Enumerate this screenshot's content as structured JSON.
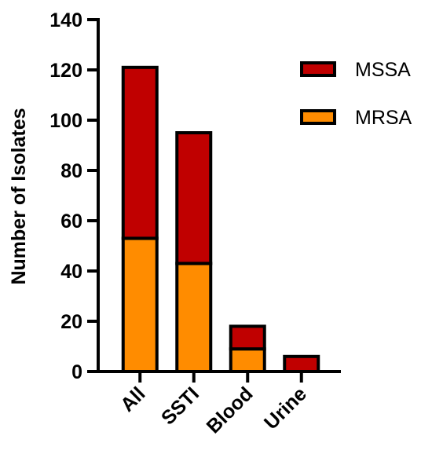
{
  "chart_data": {
    "type": "bar",
    "stacked": true,
    "title": "",
    "xlabel": "",
    "ylabel": "Number of Isolates",
    "ylim": [
      0,
      140
    ],
    "yticks": [
      0,
      20,
      40,
      60,
      80,
      100,
      120,
      140
    ],
    "categories": [
      "All",
      "SSTI",
      "Blood",
      "Urine"
    ],
    "series": [
      {
        "name": "MRSA",
        "color": "#FF8C00",
        "values": [
          53,
          43,
          9,
          0
        ]
      },
      {
        "name": "MSSA",
        "color": "#C00000",
        "values": [
          68,
          52,
          9,
          6
        ]
      }
    ],
    "legend": {
      "position": "top-right",
      "items": [
        {
          "label": "MSSA",
          "color": "#C00000"
        },
        {
          "label": "MRSA",
          "color": "#FF8C00"
        }
      ]
    },
    "grid": false
  }
}
